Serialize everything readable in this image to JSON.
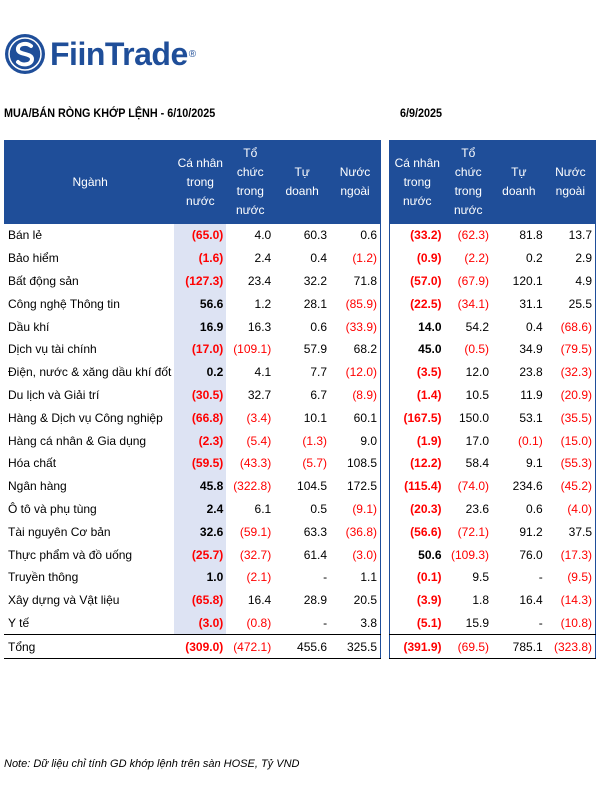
{
  "brand": {
    "name": "FiinTrade",
    "reg": "®",
    "color": "#1f4e99"
  },
  "header_left": "MUA/BÁN RÒNG KHỚP LỆNH - 6/10/2025",
  "header_right": "6/9/2025",
  "columns_left": [
    "Ngành",
    "Cá nhân trong nước",
    "Tổ chức trong nước",
    "Tự doanh",
    "Nước ngoài"
  ],
  "columns_right": [
    "Cá nhân trong nước",
    "Tổ chức trong nước",
    "Tự doanh",
    "Nước ngoài"
  ],
  "rows": [
    {
      "sector": "Bán lẻ",
      "left": [
        "(65.0)",
        "4.0",
        "60.3",
        "0.6"
      ],
      "right": [
        "(33.2)",
        "(62.3)",
        "81.8",
        "13.7"
      ]
    },
    {
      "sector": "Bảo hiểm",
      "left": [
        "(1.6)",
        "2.4",
        "0.4",
        "(1.2)"
      ],
      "right": [
        "(0.9)",
        "(2.2)",
        "0.2",
        "2.9"
      ]
    },
    {
      "sector": "Bất động sản",
      "left": [
        "(127.3)",
        "23.4",
        "32.2",
        "71.8"
      ],
      "right": [
        "(57.0)",
        "(67.9)",
        "120.1",
        "4.9"
      ]
    },
    {
      "sector": "Công nghệ Thông tin",
      "left": [
        "56.6",
        "1.2",
        "28.1",
        "(85.9)"
      ],
      "right": [
        "(22.5)",
        "(34.1)",
        "31.1",
        "25.5"
      ]
    },
    {
      "sector": "Dầu khí",
      "left": [
        "16.9",
        "16.3",
        "0.6",
        "(33.9)"
      ],
      "right": [
        "14.0",
        "54.2",
        "0.4",
        "(68.6)"
      ]
    },
    {
      "sector": "Dịch vụ tài chính",
      "left": [
        "(17.0)",
        "(109.1)",
        "57.9",
        "68.2"
      ],
      "right": [
        "45.0",
        "(0.5)",
        "34.9",
        "(79.5)"
      ]
    },
    {
      "sector": "Điện, nước & xăng dầu khí đốt",
      "left": [
        "0.2",
        "4.1",
        "7.7",
        "(12.0)"
      ],
      "right": [
        "(3.5)",
        "12.0",
        "23.8",
        "(32.3)"
      ]
    },
    {
      "sector": "Du lịch và Giải trí",
      "left": [
        "(30.5)",
        "32.7",
        "6.7",
        "(8.9)"
      ],
      "right": [
        "(1.4)",
        "10.5",
        "11.9",
        "(20.9)"
      ]
    },
    {
      "sector": "Hàng & Dịch vụ Công nghiệp",
      "left": [
        "(66.8)",
        "(3.4)",
        "10.1",
        "60.1"
      ],
      "right": [
        "(167.5)",
        "150.0",
        "53.1",
        "(35.5)"
      ]
    },
    {
      "sector": "Hàng cá nhân & Gia dụng",
      "left": [
        "(2.3)",
        "(5.4)",
        "(1.3)",
        "9.0"
      ],
      "right": [
        "(1.9)",
        "17.0",
        "(0.1)",
        "(15.0)"
      ]
    },
    {
      "sector": "Hóa chất",
      "left": [
        "(59.5)",
        "(43.3)",
        "(5.7)",
        "108.5"
      ],
      "right": [
        "(12.2)",
        "58.4",
        "9.1",
        "(55.3)"
      ]
    },
    {
      "sector": "Ngân hàng",
      "left": [
        "45.8",
        "(322.8)",
        "104.5",
        "172.5"
      ],
      "right": [
        "(115.4)",
        "(74.0)",
        "234.6",
        "(45.2)"
      ]
    },
    {
      "sector": "Ô tô và phụ tùng",
      "left": [
        "2.4",
        "6.1",
        "0.5",
        "(9.1)"
      ],
      "right": [
        "(20.3)",
        "23.6",
        "0.6",
        "(4.0)"
      ]
    },
    {
      "sector": "Tài nguyên Cơ bản",
      "left": [
        "32.6",
        "(59.1)",
        "63.3",
        "(36.8)"
      ],
      "right": [
        "(56.6)",
        "(72.1)",
        "91.2",
        "37.5"
      ]
    },
    {
      "sector": "Thực phẩm và đồ uống",
      "left": [
        "(25.7)",
        "(32.7)",
        "61.4",
        "(3.0)"
      ],
      "right": [
        "50.6",
        "(109.3)",
        "76.0",
        "(17.3)"
      ]
    },
    {
      "sector": "Truyền thông",
      "left": [
        "1.0",
        "(2.1)",
        "-",
        "1.1"
      ],
      "right": [
        "(0.1)",
        "9.5",
        "-",
        "(9.5)"
      ]
    },
    {
      "sector": "Xây dựng và Vật liệu",
      "left": [
        "(65.8)",
        "16.4",
        "28.9",
        "20.5"
      ],
      "right": [
        "(3.9)",
        "1.8",
        "16.4",
        "(14.3)"
      ]
    },
    {
      "sector": "Y tế",
      "left": [
        "(3.0)",
        "(0.8)",
        "-",
        "3.8"
      ],
      "right": [
        "(5.1)",
        "15.9",
        "-",
        "(10.8)"
      ]
    }
  ],
  "total": {
    "label": "Tổng",
    "left": [
      "(309.0)",
      "(472.1)",
      "455.6",
      "325.5"
    ],
    "right": [
      "(391.9)",
      "(69.5)",
      "785.1",
      "(323.8)"
    ]
  },
  "note": "Note: Dữ liệu chỉ tính GD khớp lệnh trên sàn HOSE, Tỷ VND",
  "colors": {
    "header_bg": "#1f4e99",
    "negative": "#ff0000",
    "highlight": "#dde3f3"
  }
}
